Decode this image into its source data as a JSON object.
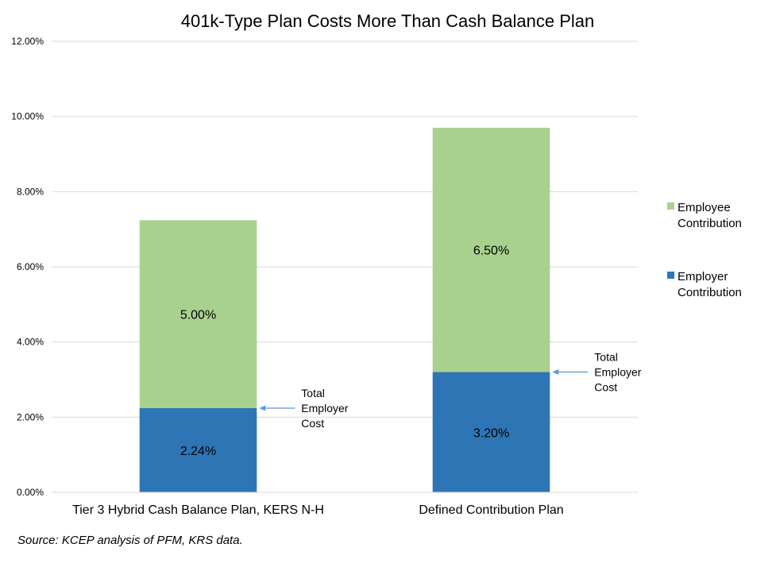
{
  "chart_data": {
    "type": "bar",
    "stacked": true,
    "title": "401k-Type Plan Costs More Than Cash Balance Plan",
    "categories": [
      "Tier 3 Hybrid Cash Balance Plan, KERS N-H",
      "Defined Contribution Plan"
    ],
    "series": [
      {
        "name": "Employer Contribution",
        "values": [
          2.24,
          3.2
        ],
        "labels": [
          "2.24%",
          "3.20%"
        ],
        "color": "#2e75b6"
      },
      {
        "name": "Employee Contribution",
        "values": [
          5.0,
          6.5
        ],
        "labels": [
          "5.00%",
          "6.50%"
        ],
        "color": "#a9d18e"
      }
    ],
    "ylim": [
      0,
      12
    ],
    "yticks": [
      "0.00%",
      "2.00%",
      "4.00%",
      "6.00%",
      "8.00%",
      "10.00%",
      "12.00%"
    ],
    "grid": true,
    "legend_position": "right",
    "annotations": [
      {
        "text_lines": [
          "Total",
          "Employer",
          "Cost"
        ],
        "category": 0,
        "points_to": "employer-top"
      },
      {
        "text_lines": [
          "Total",
          "Employer",
          "Cost"
        ],
        "category": 1,
        "points_to": "employer-top"
      }
    ]
  },
  "source_note": "Source: KCEP analysis of PFM, KRS data."
}
